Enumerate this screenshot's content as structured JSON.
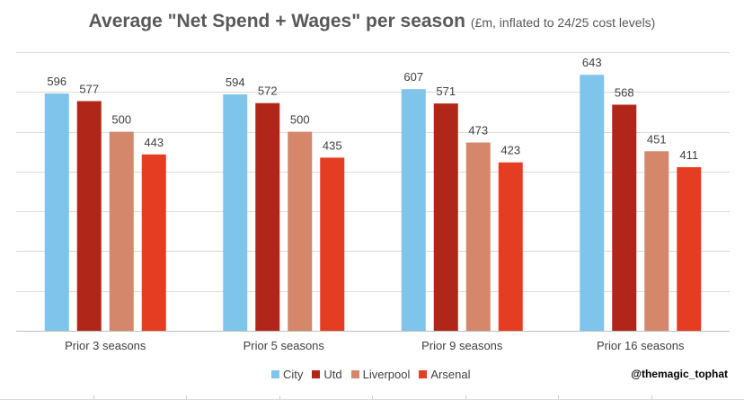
{
  "chart_data": {
    "type": "bar",
    "title": "Average \"Net Spend + Wages\" per season",
    "subtitle": "(£m, inflated to 24/25 cost levels)",
    "categories": [
      "Prior 3 seasons",
      "Prior 5 seasons",
      "Prior 9 seasons",
      "Prior 16 seasons"
    ],
    "series": [
      {
        "name": "City",
        "color": "#7fc4eb",
        "values": [
          596,
          594,
          607,
          643
        ]
      },
      {
        "name": "Utd",
        "color": "#b0271a",
        "values": [
          577,
          572,
          571,
          568
        ]
      },
      {
        "name": "Liverpool",
        "color": "#d4876a",
        "values": [
          500,
          500,
          473,
          451
        ]
      },
      {
        "name": "Arsenal",
        "color": "#e53d22",
        "values": [
          443,
          435,
          423,
          411
        ]
      }
    ],
    "ylim": [
      0,
      700
    ],
    "grid_step": 100,
    "grid": true,
    "legend_position": "bottom-center",
    "xlabel": "",
    "ylabel": ""
  },
  "credit": "@themagic_tophat"
}
